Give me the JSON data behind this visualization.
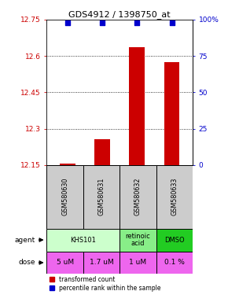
{
  "title": "GDS4912 / 1398750_at",
  "samples": [
    "GSM580630",
    "GSM580631",
    "GSM580632",
    "GSM580633"
  ],
  "bar_values": [
    12.157,
    12.255,
    12.635,
    12.575
  ],
  "blue_values": [
    98,
    98,
    98,
    98
  ],
  "ylim_left": [
    12.15,
    12.75
  ],
  "ylim_right": [
    0,
    100
  ],
  "yticks_left": [
    12.15,
    12.3,
    12.45,
    12.6,
    12.75
  ],
  "ytick_labels_left": [
    "12.15",
    "12.3",
    "12.45",
    "12.6",
    "12.75"
  ],
  "yticks_right": [
    0,
    25,
    50,
    75,
    100
  ],
  "ytick_labels_right": [
    "0",
    "25",
    "50",
    "75",
    "100%"
  ],
  "bar_color": "#cc0000",
  "blue_color": "#0000cc",
  "dose_labels": [
    "5 uM",
    "1.7 uM",
    "1 uM",
    "0.1 %"
  ],
  "dose_color": "#ee66ee",
  "agent_groups": [
    {
      "c0": 0,
      "c1": 2,
      "label": "KHS101",
      "color": "#ccffcc"
    },
    {
      "c0": 2,
      "c1": 3,
      "label": "retinoic\nacid",
      "color": "#88ee88"
    },
    {
      "c0": 3,
      "c1": 4,
      "label": "DMSO",
      "color": "#22cc22"
    }
  ],
  "sample_color": "#cccccc",
  "background_color": "#ffffff",
  "dotted_values": [
    12.3,
    12.45,
    12.6
  ],
  "legend_red_label": "transformed count",
  "legend_blue_label": "percentile rank within the sample"
}
